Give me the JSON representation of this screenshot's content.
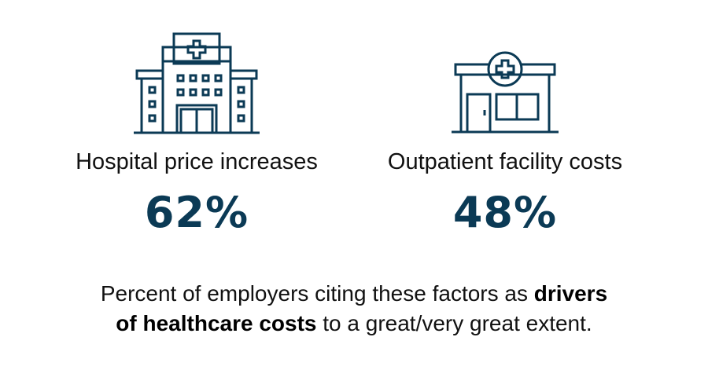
{
  "colors": {
    "accent": "#0b3a55",
    "text": "#111111",
    "background": "#ffffff"
  },
  "stats": [
    {
      "icon": "hospital-icon",
      "label": "Hospital price increases",
      "value": "62%"
    },
    {
      "icon": "outpatient-clinic-icon",
      "label": "Outpatient facility costs",
      "value": "48%"
    }
  ],
  "caption": {
    "before": "Percent of employers citing these factors as ",
    "emphasis_line1": "drivers",
    "emphasis_line2": "of healthcare costs",
    "after": " to a great/very great extent."
  }
}
